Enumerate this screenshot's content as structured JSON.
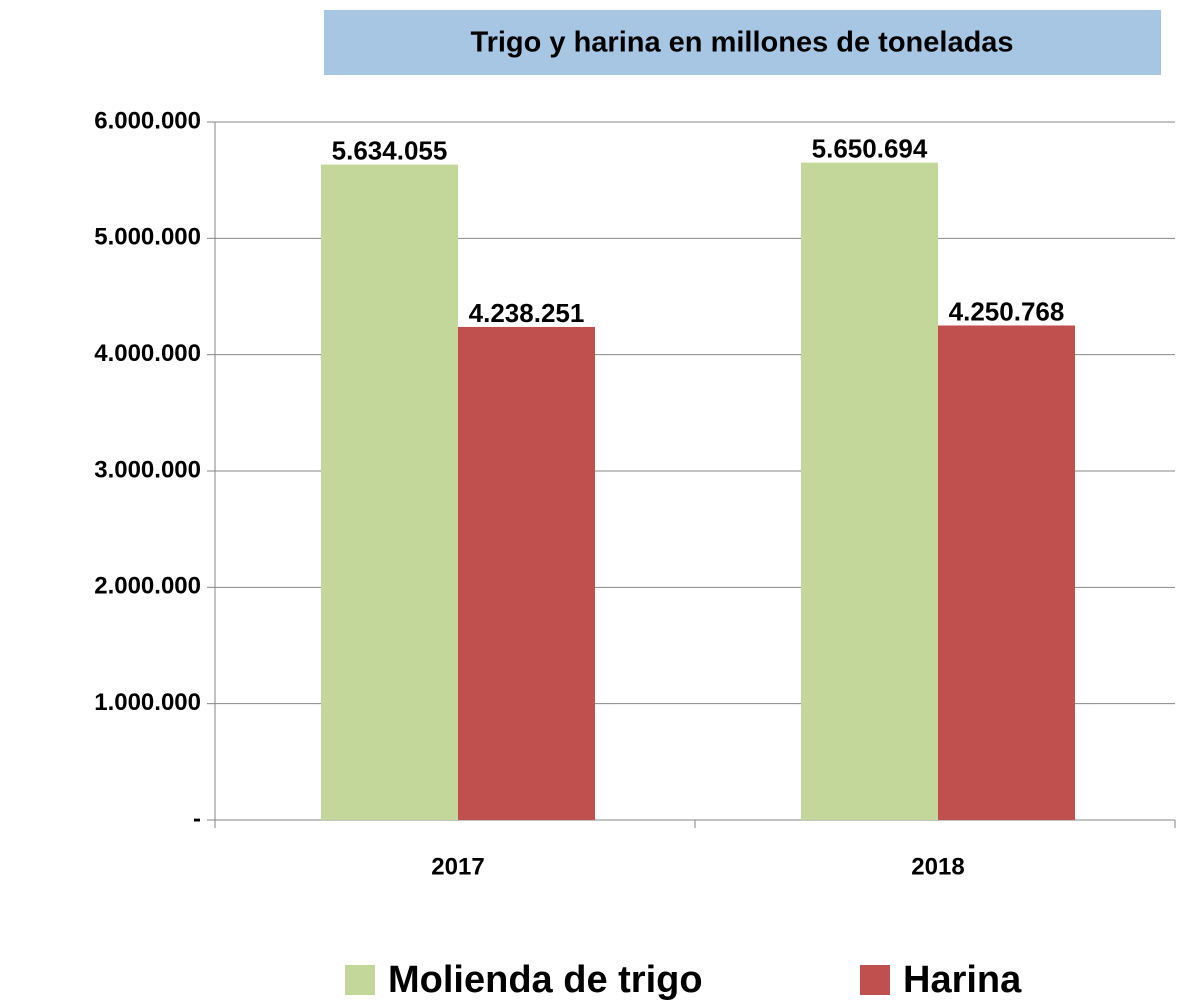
{
  "chart_data": {
    "type": "bar",
    "title": "Trigo y harina en millones de toneladas",
    "categories": [
      "2017",
      "2018"
    ],
    "series": [
      {
        "name": "Molienda de trigo",
        "color": "#c4d79b",
        "values": [
          5634055,
          5650694
        ],
        "value_labels": [
          "5.634.055",
          "5.650.694"
        ]
      },
      {
        "name": "Harina",
        "color": "#c0504d",
        "values": [
          4238251,
          4250768
        ],
        "value_labels": [
          "4.238.251",
          "4.250.768"
        ]
      }
    ],
    "ylim": [
      0,
      6000000
    ],
    "yticks": [
      {
        "value": 0,
        "label": "-"
      },
      {
        "value": 1000000,
        "label": "1.000.000"
      },
      {
        "value": 2000000,
        "label": "2.000.000"
      },
      {
        "value": 3000000,
        "label": "3.000.000"
      },
      {
        "value": 4000000,
        "label": "4.000.000"
      },
      {
        "value": 5000000,
        "label": "5.000.000"
      },
      {
        "value": 6000000,
        "label": "6.000.000"
      }
    ],
    "grid": true,
    "legend": "bottom"
  }
}
